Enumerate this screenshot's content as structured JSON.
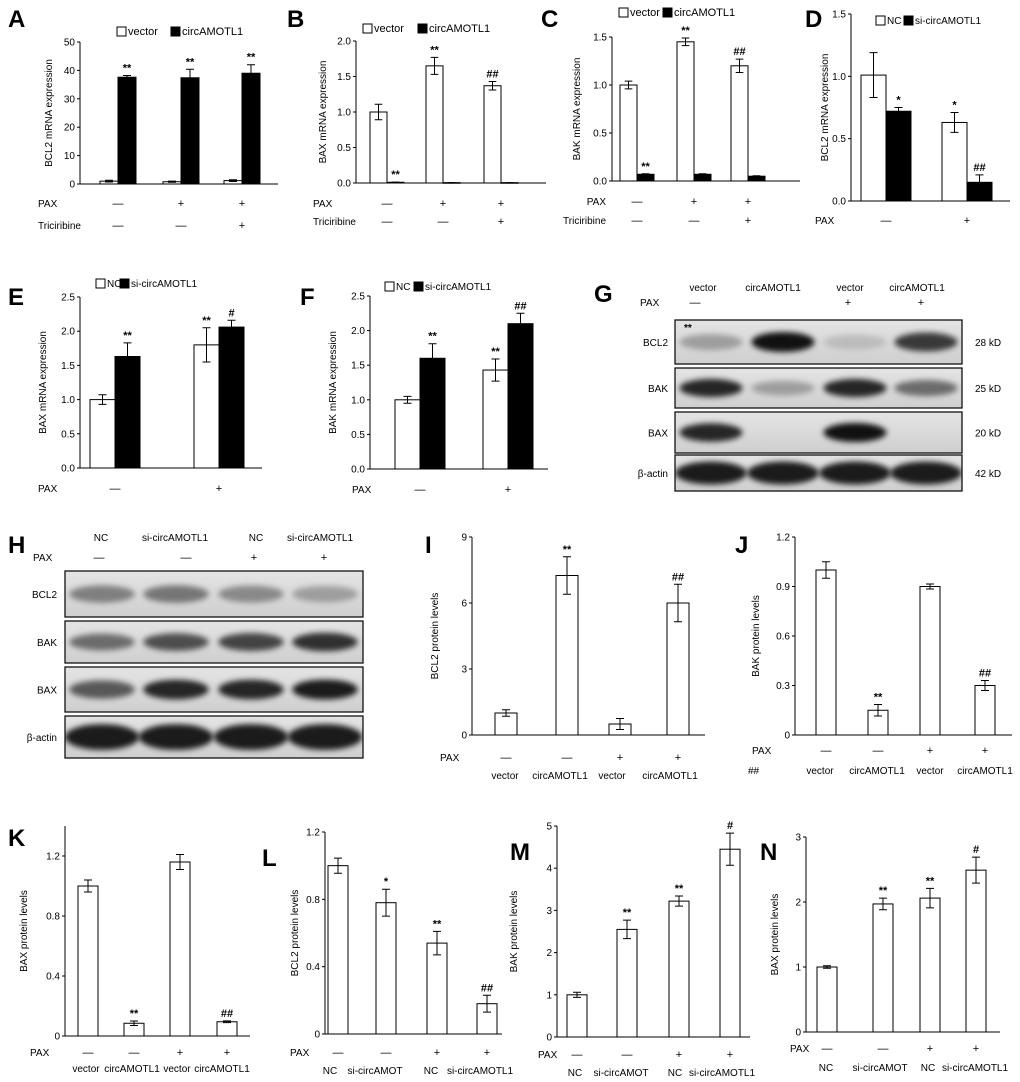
{
  "chart_data": [
    {
      "panel": "A",
      "type": "bar",
      "ylabel": "BCL2 mRNA expression",
      "ylim": [
        0,
        50
      ],
      "yticks": [
        "0",
        "10",
        "20",
        "30",
        "40",
        "50"
      ],
      "series": [
        {
          "name": "vector",
          "color": "#ffffff",
          "values": [
            1.0,
            0.8,
            1.2
          ],
          "errors": [
            0.3,
            0.2,
            0.3
          ],
          "marks": [
            "",
            "",
            ""
          ]
        },
        {
          "name": "circAMOTL1",
          "color": "#000000",
          "values": [
            37.6,
            37.4,
            39.0
          ],
          "errors": [
            0.6,
            3.0,
            3.0
          ],
          "marks": [
            "**",
            "**",
            "**"
          ]
        }
      ],
      "conditions": [
        {
          "label": "PAX",
          "values": [
            "—",
            "+",
            "+"
          ]
        },
        {
          "label": "Triciribine",
          "values": [
            "—",
            "—",
            "+"
          ]
        }
      ]
    },
    {
      "panel": "B",
      "type": "bar",
      "ylabel": "BAX mRNA expression",
      "ylim": [
        0,
        2.0
      ],
      "yticks": [
        "0.0",
        "0.5",
        "1.0",
        "1.5",
        "2.0"
      ],
      "series": [
        {
          "name": "vector",
          "color": "#ffffff",
          "values": [
            1.0,
            1.65,
            1.37
          ],
          "errors": [
            0.11,
            0.12,
            0.06
          ],
          "marks": [
            "",
            "**",
            "##"
          ]
        },
        {
          "name": "circAMOTL1",
          "color": "#000000",
          "values": [
            0.01,
            0.005,
            0.005
          ],
          "errors": [
            0.002,
            0.001,
            0.001
          ],
          "marks": [
            "**",
            "",
            ""
          ]
        }
      ],
      "conditions": [
        {
          "label": "PAX",
          "values": [
            "—",
            "+",
            "+"
          ]
        },
        {
          "label": "Triciribine",
          "values": [
            "—",
            "—",
            "+"
          ]
        }
      ]
    },
    {
      "panel": "C",
      "type": "bar",
      "ylabel": "BAK mRNA expression",
      "ylim": [
        0,
        1.5
      ],
      "yticks": [
        "0.0",
        "0.5",
        "1.0",
        "1.5"
      ],
      "series": [
        {
          "name": "vector",
          "color": "#ffffff",
          "values": [
            1.0,
            1.45,
            1.2
          ],
          "errors": [
            0.04,
            0.04,
            0.07
          ],
          "marks": [
            "",
            "**",
            "##"
          ]
        },
        {
          "name": "circAMOTL1",
          "color": "#000000",
          "values": [
            0.07,
            0.07,
            0.05
          ],
          "errors": [
            0.005,
            0.005,
            0.005
          ],
          "marks": [
            "**",
            "",
            ""
          ]
        }
      ],
      "conditions": [
        {
          "label": "PAX",
          "values": [
            "—",
            "+",
            "+"
          ]
        },
        {
          "label": "Triciribine",
          "values": [
            "—",
            "—",
            "+"
          ]
        }
      ]
    },
    {
      "panel": "D",
      "type": "bar",
      "ylabel": "BCL2 mRNA expression",
      "ylim": [
        0,
        1.5
      ],
      "yticks": [
        "0.0",
        "0.5",
        "1.0",
        "1.5"
      ],
      "series": [
        {
          "name": "NC",
          "color": "#ffffff",
          "values": [
            1.01,
            0.63
          ],
          "errors": [
            0.18,
            0.08
          ],
          "marks": [
            "",
            "*"
          ]
        },
        {
          "name": "si-circAMOTL1",
          "color": "#000000",
          "values": [
            0.72,
            0.15
          ],
          "errors": [
            0.03,
            0.06
          ],
          "marks": [
            "*",
            "##"
          ]
        }
      ],
      "conditions": [
        {
          "label": "PAX",
          "values": [
            "—",
            "+"
          ]
        }
      ]
    },
    {
      "panel": "E",
      "type": "bar",
      "ylabel": "BAX mRNA expression",
      "ylim": [
        0,
        2.5
      ],
      "yticks": [
        "0.0",
        "0.5",
        "1.0",
        "1.5",
        "2.0",
        "2.5"
      ],
      "series": [
        {
          "name": "NC",
          "color": "#ffffff",
          "values": [
            1.0,
            1.8
          ],
          "errors": [
            0.07,
            0.25
          ],
          "marks": [
            "",
            "**"
          ]
        },
        {
          "name": "si-circAMOTL1",
          "color": "#000000",
          "values": [
            1.63,
            2.06
          ],
          "errors": [
            0.2,
            0.1
          ],
          "marks": [
            "**",
            "#"
          ]
        }
      ],
      "conditions": [
        {
          "label": "PAX",
          "values": [
            "—",
            "+"
          ]
        }
      ]
    },
    {
      "panel": "F",
      "type": "bar",
      "ylabel": "BAK mRNA expression",
      "ylim": [
        0,
        2.5
      ],
      "yticks": [
        "0.0",
        "0.5",
        "1.0",
        "1.5",
        "2.0",
        "2.5"
      ],
      "series": [
        {
          "name": "NC",
          "color": "#ffffff",
          "values": [
            1.0,
            1.43
          ],
          "errors": [
            0.05,
            0.16
          ],
          "marks": [
            "",
            "**"
          ]
        },
        {
          "name": "si-circAMOTL1",
          "color": "#000000",
          "values": [
            1.6,
            2.1
          ],
          "errors": [
            0.21,
            0.15
          ],
          "marks": [
            "**",
            "##"
          ]
        }
      ],
      "conditions": [
        {
          "label": "PAX",
          "values": [
            "—",
            "+"
          ]
        }
      ]
    },
    {
      "panel": "I",
      "type": "bar",
      "ylabel": "BCL2 protein levels",
      "ylim": [
        0,
        9
      ],
      "yticks": [
        "0",
        "3",
        "6",
        "9"
      ],
      "series": [
        {
          "color": "#ffffff",
          "values": [
            1.0,
            7.25,
            0.5,
            6.0
          ],
          "errors": [
            0.15,
            0.85,
            0.25,
            0.85
          ],
          "marks": [
            "",
            "**",
            "",
            "##"
          ]
        }
      ],
      "conditions": [
        {
          "label": "PAX",
          "values": [
            "—",
            "—",
            "+",
            "+"
          ]
        }
      ],
      "xlabels": [
        "vector",
        "circAMOTL1",
        "vector",
        "circAMOTL1"
      ]
    },
    {
      "panel": "J",
      "type": "bar",
      "ylabel": "BAK protein levels",
      "ylim": [
        0,
        1.2
      ],
      "yticks": [
        "0",
        "0.3",
        "0.6",
        "0.9",
        "1.2"
      ],
      "series": [
        {
          "color": "#ffffff",
          "values": [
            1.0,
            0.15,
            0.9,
            0.3
          ],
          "errors": [
            0.05,
            0.035,
            0.015,
            0.03
          ],
          "marks": [
            "",
            "**",
            "",
            "##"
          ]
        }
      ],
      "conditions": [
        {
          "label": "PAX",
          "values": [
            "—",
            "—",
            "+",
            "+"
          ]
        }
      ],
      "xlabels": [
        "vector",
        "circAMOTL1",
        "vector",
        "circAMOTL1"
      ],
      "extra_text": "##"
    },
    {
      "panel": "K",
      "type": "bar",
      "ylabel": "BAX protein levels",
      "ylim": [
        0,
        1.4
      ],
      "yticks": [
        "0",
        "0.4",
        "0.8",
        "1.2"
      ],
      "series": [
        {
          "color": "#ffffff",
          "values": [
            1.0,
            0.085,
            1.16,
            0.095
          ],
          "errors": [
            0.04,
            0.015,
            0.05,
            0.006
          ],
          "marks": [
            "",
            "**",
            "",
            "##"
          ]
        }
      ],
      "conditions": [
        {
          "label": "PAX",
          "values": [
            "—",
            "—",
            "+",
            "+"
          ]
        }
      ],
      "xlabels": [
        "vector",
        "circAMOTL1",
        "vector",
        "circAMOTL1"
      ]
    },
    {
      "panel": "L",
      "type": "bar",
      "ylabel": "BCL2 protein levels",
      "ylim": [
        0,
        1.2
      ],
      "yticks": [
        "0",
        "0.4",
        "0.8",
        "1.2"
      ],
      "series": [
        {
          "color": "#ffffff",
          "values": [
            1.0,
            0.78,
            0.54,
            0.18
          ],
          "errors": [
            0.045,
            0.08,
            0.07,
            0.05
          ],
          "marks": [
            "",
            "*",
            "**",
            "##"
          ]
        }
      ],
      "conditions": [
        {
          "label": "PAX",
          "values": [
            "—",
            "—",
            "+",
            "+"
          ]
        }
      ],
      "xlabels": [
        "NC",
        "si-circAMOT",
        "NC",
        "si-circAMOTL1"
      ]
    },
    {
      "panel": "M",
      "type": "bar",
      "ylabel": "BAK protein levels",
      "ylim": [
        0,
        5
      ],
      "yticks": [
        "0",
        "1",
        "2",
        "3",
        "4",
        "5"
      ],
      "series": [
        {
          "color": "#ffffff",
          "values": [
            1.0,
            2.55,
            3.22,
            4.45
          ],
          "errors": [
            0.06,
            0.22,
            0.12,
            0.38
          ],
          "marks": [
            "",
            "**",
            "**",
            "#"
          ]
        }
      ],
      "conditions": [
        {
          "label": "PAX",
          "values": [
            "—",
            "—",
            "+",
            "+"
          ]
        }
      ],
      "xlabels": [
        "NC",
        "si-circAMOT",
        "NC",
        "si-circAMOTL1"
      ]
    },
    {
      "panel": "N",
      "type": "bar",
      "ylabel": "BAX protein levels",
      "ylim": [
        0,
        3
      ],
      "yticks": [
        "0",
        "1",
        "2",
        "3"
      ],
      "series": [
        {
          "color": "#ffffff",
          "values": [
            1.0,
            1.97,
            2.06,
            2.49
          ],
          "errors": [
            0.02,
            0.09,
            0.15,
            0.2
          ],
          "marks": [
            "",
            "**",
            "**",
            "#"
          ]
        }
      ],
      "conditions": [
        {
          "label": "PAX",
          "values": [
            "—",
            "—",
            "+",
            "+"
          ]
        }
      ],
      "xlabels": [
        "NC",
        "si-circAMOT",
        "NC",
        "si-circAMOTL1"
      ]
    }
  ],
  "blots": [
    {
      "panel": "G",
      "lanes": [
        "vector",
        "circAMOTL1",
        "vector",
        "circAMOTL1"
      ],
      "conditions": [
        {
          "label": "PAX",
          "values": [
            "—",
            "",
            "+",
            "+"
          ]
        }
      ],
      "rows": [
        {
          "label": "BCL2",
          "size": "28 kD",
          "intensity": [
            0.3,
            1.0,
            0.15,
            0.8
          ]
        },
        {
          "label": "BAK",
          "size": "25 kD",
          "intensity": [
            0.9,
            0.3,
            0.9,
            0.55
          ]
        },
        {
          "label": "BAX",
          "size": "20 kD",
          "intensity": [
            0.9,
            0.0,
            1.0,
            0.0
          ]
        },
        {
          "label": "β-actin",
          "size": "42 kD",
          "intensity": [
            0.95,
            0.95,
            0.95,
            0.95
          ]
        }
      ],
      "annotation": "**"
    },
    {
      "panel": "H",
      "lanes": [
        "NC",
        "si-circAMOTL1",
        "NC",
        "si-circAMOTL1"
      ],
      "conditions": [
        {
          "label": "PAX",
          "values": [
            "—",
            "—",
            "+",
            "+"
          ]
        }
      ],
      "rows": [
        {
          "label": "BCL2",
          "intensity": [
            0.45,
            0.5,
            0.4,
            0.3
          ]
        },
        {
          "label": "BAK",
          "intensity": [
            0.55,
            0.7,
            0.75,
            0.85
          ]
        },
        {
          "label": "BAX",
          "intensity": [
            0.65,
            0.9,
            0.9,
            0.95
          ]
        },
        {
          "label": "β-actin",
          "intensity": [
            0.95,
            0.95,
            0.95,
            0.95
          ]
        }
      ]
    }
  ],
  "colors": {
    "membrane_light": "#e4e4e4",
    "membrane_dark": "#cfcfcf",
    "band": "#000000"
  }
}
